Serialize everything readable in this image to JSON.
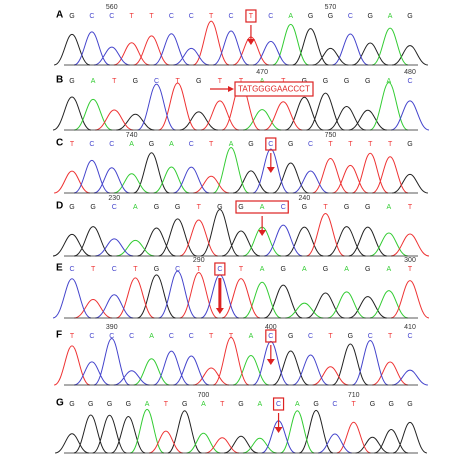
{
  "panels": [
    {
      "label": "A",
      "bases": [
        "G",
        "C",
        "C",
        "T",
        "T",
        "C",
        "C",
        "T",
        "C",
        "T",
        "C",
        "A",
        "G",
        "G",
        "C",
        "G",
        "A",
        "G"
      ],
      "positions": [
        "560",
        "570"
      ]
    },
    {
      "label": "B",
      "bases": [
        "G",
        "A",
        "T",
        "G",
        "C",
        "T",
        "G",
        "T",
        "T",
        "A",
        "T",
        "G",
        "G",
        "G",
        "G",
        "A",
        "C"
      ],
      "positions": [
        "470",
        "480"
      ],
      "annotation": "TATGGGGAACCCT"
    },
    {
      "label": "C",
      "bases": [
        "T",
        "C",
        "C",
        "A",
        "G",
        "A",
        "C",
        "T",
        "A",
        "G",
        "C",
        "G",
        "C",
        "T",
        "T",
        "T",
        "T",
        "G"
      ],
      "positions": [
        "740",
        "750"
      ]
    },
    {
      "label": "D",
      "bases": [
        "G",
        "G",
        "C",
        "A",
        "G",
        "G",
        "T",
        "G",
        "G",
        "A",
        "C",
        "G",
        "T",
        "G",
        "G",
        "A",
        "T"
      ],
      "positions": [
        "230",
        "240"
      ]
    },
    {
      "label": "E",
      "bases": [
        "C",
        "T",
        "C",
        "T",
        "G",
        "C",
        "T",
        "C",
        "T",
        "A",
        "G",
        "A",
        "G",
        "A",
        "G",
        "A",
        "T"
      ],
      "positions": [
        "290",
        "300"
      ]
    },
    {
      "label": "F",
      "bases": [
        "T",
        "C",
        "C",
        "C",
        "A",
        "C",
        "C",
        "T",
        "T",
        "A",
        "C",
        "G",
        "C",
        "T",
        "G",
        "C",
        "T",
        "C"
      ],
      "positions": [
        "390",
        "400",
        "410"
      ]
    },
    {
      "label": "G",
      "bases": [
        "G",
        "G",
        "G",
        "G",
        "A",
        "T",
        "G",
        "A",
        "T",
        "G",
        "A",
        "C",
        "A",
        "G",
        "C",
        "T",
        "G",
        "G",
        "G"
      ],
      "positions": [
        "700",
        "710"
      ]
    }
  ]
}
